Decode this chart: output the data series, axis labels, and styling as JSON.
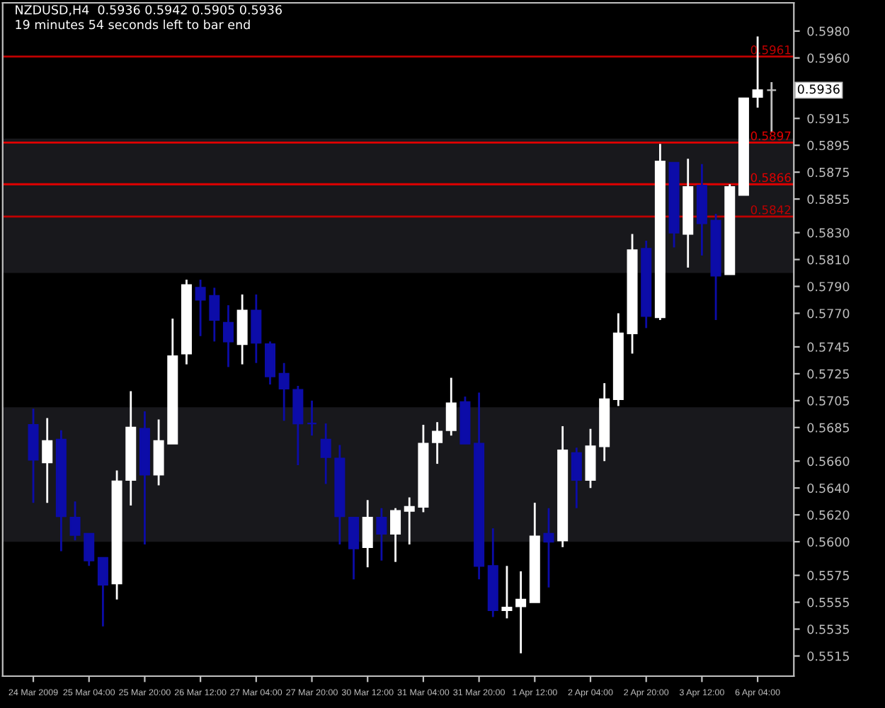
{
  "chart_data": {
    "type": "candlestick",
    "title": "NZDUSD,H4  0.5936 0.5942 0.5905 0.5936",
    "subtitle": "19 minutes 54 seconds left to bar end",
    "categories": [
      "24 Mar 2009",
      null,
      null,
      null,
      "25 Mar 04:00",
      null,
      null,
      null,
      "25 Mar 20:00",
      null,
      null,
      null,
      "26 Mar 12:00",
      null,
      null,
      null,
      "27 Mar 04:00",
      null,
      null,
      null,
      "27 Mar 20:00",
      null,
      null,
      null,
      "30 Mar 12:00",
      null,
      null,
      null,
      "31 Mar 04:00",
      null,
      null,
      null,
      "31 Mar 20:00",
      null,
      null,
      null,
      "1 Apr 12:00",
      null,
      null,
      null,
      "2 Apr 04:00",
      null,
      null,
      null,
      "2 Apr 20:00",
      null,
      null,
      null,
      "3 Apr 12:00",
      null,
      null,
      null,
      "6 Apr 04:00",
      null
    ],
    "ohlc": [
      [
        0.5687,
        0.5699,
        0.5629,
        0.5661
      ],
      [
        0.5659,
        0.5692,
        0.5629,
        0.5675
      ],
      [
        0.5676,
        0.5683,
        0.5593,
        0.5619
      ],
      [
        0.5618,
        0.563,
        0.5601,
        0.5605
      ],
      [
        0.5606,
        0.5606,
        0.5582,
        0.5586
      ],
      [
        0.5588,
        0.5588,
        0.5537,
        0.5568
      ],
      [
        0.5569,
        0.5653,
        0.5557,
        0.5645
      ],
      [
        0.5646,
        0.5712,
        0.5627,
        0.5685
      ],
      [
        0.5684,
        0.5697,
        0.5598,
        0.565
      ],
      [
        0.565,
        0.5691,
        0.5642,
        0.5675
      ],
      [
        0.5673,
        0.5766,
        0.5673,
        0.5738
      ],
      [
        0.574,
        0.5795,
        0.5732,
        0.5791
      ],
      [
        0.5789,
        0.5795,
        0.5753,
        0.578
      ],
      [
        0.5783,
        0.5789,
        0.5749,
        0.5765
      ],
      [
        0.5763,
        0.5776,
        0.573,
        0.5749
      ],
      [
        0.5747,
        0.5784,
        0.5732,
        0.5772
      ],
      [
        0.5772,
        0.5784,
        0.5733,
        0.5748
      ],
      [
        0.5747,
        0.5749,
        0.5717,
        0.5723
      ],
      [
        0.5725,
        0.5733,
        0.569,
        0.5714
      ],
      [
        0.5713,
        0.5716,
        0.5657,
        0.5688
      ],
      [
        0.5688,
        0.5705,
        0.5679,
        0.5688
      ],
      [
        0.5676,
        0.5688,
        0.5643,
        0.5663
      ],
      [
        0.5662,
        0.5672,
        0.5598,
        0.5619
      ],
      [
        0.5618,
        0.5618,
        0.5572,
        0.5595
      ],
      [
        0.5596,
        0.5631,
        0.5581,
        0.5618
      ],
      [
        0.5618,
        0.5625,
        0.5586,
        0.5606
      ],
      [
        0.5606,
        0.5625,
        0.5585,
        0.5623
      ],
      [
        0.5623,
        0.5633,
        0.5598,
        0.5626
      ],
      [
        0.5626,
        0.5687,
        0.5622,
        0.5673
      ],
      [
        0.5674,
        0.5689,
        0.5658,
        0.5682
      ],
      [
        0.5683,
        0.5722,
        0.5679,
        0.5703
      ],
      [
        0.5704,
        0.5708,
        0.5673,
        0.5673
      ],
      [
        0.5673,
        0.5711,
        0.5572,
        0.5582
      ],
      [
        0.5582,
        0.561,
        0.5544,
        0.5549
      ],
      [
        0.5549,
        0.5582,
        0.5543,
        0.5551
      ],
      [
        0.5552,
        0.5578,
        0.5517,
        0.5557
      ],
      [
        0.5555,
        0.5629,
        0.5555,
        0.5604
      ],
      [
        0.5606,
        0.5625,
        0.5566,
        0.56
      ],
      [
        0.5601,
        0.5686,
        0.5596,
        0.5668
      ],
      [
        0.5666,
        0.567,
        0.5625,
        0.5646
      ],
      [
        0.5646,
        0.5684,
        0.564,
        0.5671
      ],
      [
        0.5671,
        0.5718,
        0.566,
        0.5706
      ],
      [
        0.5706,
        0.577,
        0.5701,
        0.5755
      ],
      [
        0.5755,
        0.5829,
        0.574,
        0.5817
      ],
      [
        0.5818,
        0.5824,
        0.5759,
        0.5768
      ],
      [
        0.5767,
        0.5896,
        0.5765,
        0.5883
      ],
      [
        0.5882,
        0.5882,
        0.5819,
        0.583
      ],
      [
        0.5829,
        0.5885,
        0.5804,
        0.5864
      ],
      [
        0.5865,
        0.5881,
        0.5813,
        0.5837
      ],
      [
        0.5839,
        0.5844,
        0.5765,
        0.5798
      ],
      [
        0.5799,
        0.5866,
        0.5799,
        0.5864
      ],
      [
        0.5858,
        0.593,
        0.5858,
        0.593
      ],
      [
        0.5931,
        0.5976,
        0.5923,
        0.5936
      ],
      [
        0.5936,
        0.5942,
        0.5905,
        0.5936
      ]
    ],
    "colors": [
      "#0c0ca8",
      "#ffffff",
      "#0c0ca8",
      "#0c0ca8",
      "#0c0ca8",
      "#0c0ca8",
      "#ffffff",
      "#ffffff",
      "#0c0ca8",
      "#ffffff",
      "#ffffff",
      "#ffffff",
      "#0c0ca8",
      "#0c0ca8",
      "#0c0ca8",
      "#ffffff",
      "#0c0ca8",
      "#0c0ca8",
      "#0c0ca8",
      "#0c0ca8",
      "#0c0ca8",
      "#0c0ca8",
      "#0c0ca8",
      "#0c0ca8",
      "#ffffff",
      "#0c0ca8",
      "#ffffff",
      "#ffffff",
      "#ffffff",
      "#ffffff",
      "#ffffff",
      "#0c0ca8",
      "#0c0ca8",
      "#0c0ca8",
      "#ffffff",
      "#ffffff",
      "#ffffff",
      "#0c0ca8",
      "#ffffff",
      "#0c0ca8",
      "#ffffff",
      "#ffffff",
      "#ffffff",
      "#ffffff",
      "#0c0ca8",
      "#ffffff",
      "#0c0ca8",
      "#ffffff",
      "#0c0ca8",
      "#0c0ca8",
      "#ffffff",
      "#ffffff",
      "#ffffff",
      "#c0c0c0"
    ],
    "ylim": [
      0.55,
      0.6001
    ],
    "yticks": [
      0.5515,
      0.5535,
      0.5555,
      0.5575,
      {
        "value": 0.56,
        "label": "0.5600"
      },
      {
        "value": 0.562,
        "label": "0.5620"
      },
      {
        "value": 0.564,
        "label": "0.5640"
      },
      {
        "value": 0.566,
        "label": "0.5660"
      },
      0.5685,
      0.5705,
      0.5725,
      0.5745,
      {
        "value": 0.577,
        "label": "0.5770"
      },
      {
        "value": 0.579,
        "label": "0.5790"
      },
      {
        "value": 0.581,
        "label": "0.5810"
      },
      {
        "value": 0.583,
        "label": "0.5830"
      },
      0.5855,
      0.5875,
      0.5895,
      0.5915,
      {
        "value": 0.596,
        "label": "0.5960"
      },
      {
        "value": 0.598,
        "label": "0.5980"
      }
    ],
    "bands": [
      {
        "axis": "y",
        "from": 0.56,
        "to": 0.57,
        "color": "#18181c"
      },
      {
        "axis": "y",
        "from": 0.58,
        "to": 0.59,
        "color": "#18181c"
      }
    ],
    "ref_lines": [
      {
        "axis": "y",
        "value": 0.5961,
        "label": "0.5961",
        "color": "#c00000",
        "line_style": "solid"
      },
      {
        "axis": "y",
        "value": 0.5897,
        "label": "0.5897",
        "color": "#e00000",
        "line_style": "solid"
      },
      {
        "axis": "y",
        "value": 0.5866,
        "label": "0.5866",
        "color": "#e00000",
        "line_style": "solid"
      },
      {
        "axis": "y",
        "value": 0.5842,
        "label": "0.5842",
        "color": "#c00000",
        "line_style": "solid"
      }
    ],
    "annotations": [
      "0.5936"
    ],
    "grid": false,
    "legend": false
  }
}
